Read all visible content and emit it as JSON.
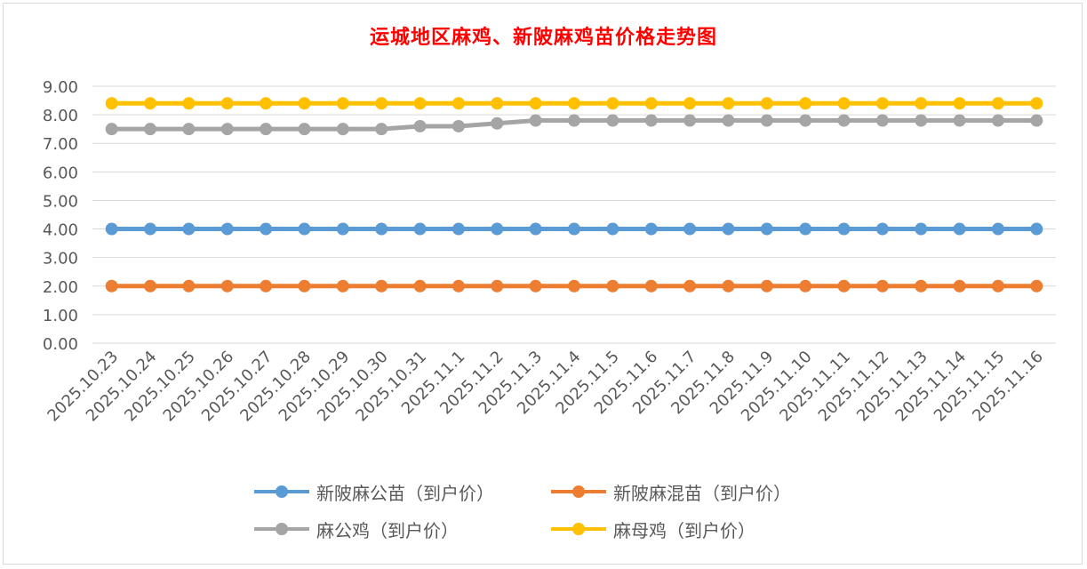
{
  "chart_data": {
    "type": "line",
    "title": "运城地区麻鸡、新陂麻鸡苗价格走势图",
    "xlabel": "",
    "ylabel": "",
    "ylim": [
      0,
      9
    ],
    "ytick_step": 1,
    "ytick_labels": [
      "0.00",
      "1.00",
      "2.00",
      "3.00",
      "4.00",
      "5.00",
      "6.00",
      "7.00",
      "8.00",
      "9.00"
    ],
    "grid": true,
    "legend_position": "bottom",
    "categories": [
      "2025.10.23",
      "2025.10.24",
      "2025.10.25",
      "2025.10.26",
      "2025.10.27",
      "2025.10.28",
      "2025.10.29",
      "2025.10.30",
      "2025.10.31",
      "2025.11.1",
      "2025.11.2",
      "2025.11.3",
      "2025.11.4",
      "2025.11.5",
      "2025.11.6",
      "2025.11.7",
      "2025.11.8",
      "2025.11.9",
      "2025.11.10",
      "2025.11.11",
      "2025.11.12",
      "2025.11.13",
      "2025.11.14",
      "2025.11.15",
      "2025.11.16"
    ],
    "series": [
      {
        "name": "新陂麻公苗（到户价）",
        "color": "#5b9bd5",
        "values": [
          4,
          4,
          4,
          4,
          4,
          4,
          4,
          4,
          4,
          4,
          4,
          4,
          4,
          4,
          4,
          4,
          4,
          4,
          4,
          4,
          4,
          4,
          4,
          4,
          4
        ]
      },
      {
        "name": "新陂麻混苗（到户价）",
        "color": "#ed7d31",
        "values": [
          2,
          2,
          2,
          2,
          2,
          2,
          2,
          2,
          2,
          2,
          2,
          2,
          2,
          2,
          2,
          2,
          2,
          2,
          2,
          2,
          2,
          2,
          2,
          2,
          2
        ]
      },
      {
        "name": "麻公鸡（到户价）",
        "color": "#a5a5a5",
        "values": [
          7.5,
          7.5,
          7.5,
          7.5,
          7.5,
          7.5,
          7.5,
          7.5,
          7.6,
          7.6,
          7.7,
          7.8,
          7.8,
          7.8,
          7.8,
          7.8,
          7.8,
          7.8,
          7.8,
          7.8,
          7.8,
          7.8,
          7.8,
          7.8,
          7.8
        ]
      },
      {
        "name": "麻母鸡（到户价）",
        "color": "#ffc000",
        "values": [
          8.4,
          8.4,
          8.4,
          8.4,
          8.4,
          8.4,
          8.4,
          8.4,
          8.4,
          8.4,
          8.4,
          8.4,
          8.4,
          8.4,
          8.4,
          8.4,
          8.4,
          8.4,
          8.4,
          8.4,
          8.4,
          8.4,
          8.4,
          8.4,
          8.4
        ]
      }
    ]
  }
}
